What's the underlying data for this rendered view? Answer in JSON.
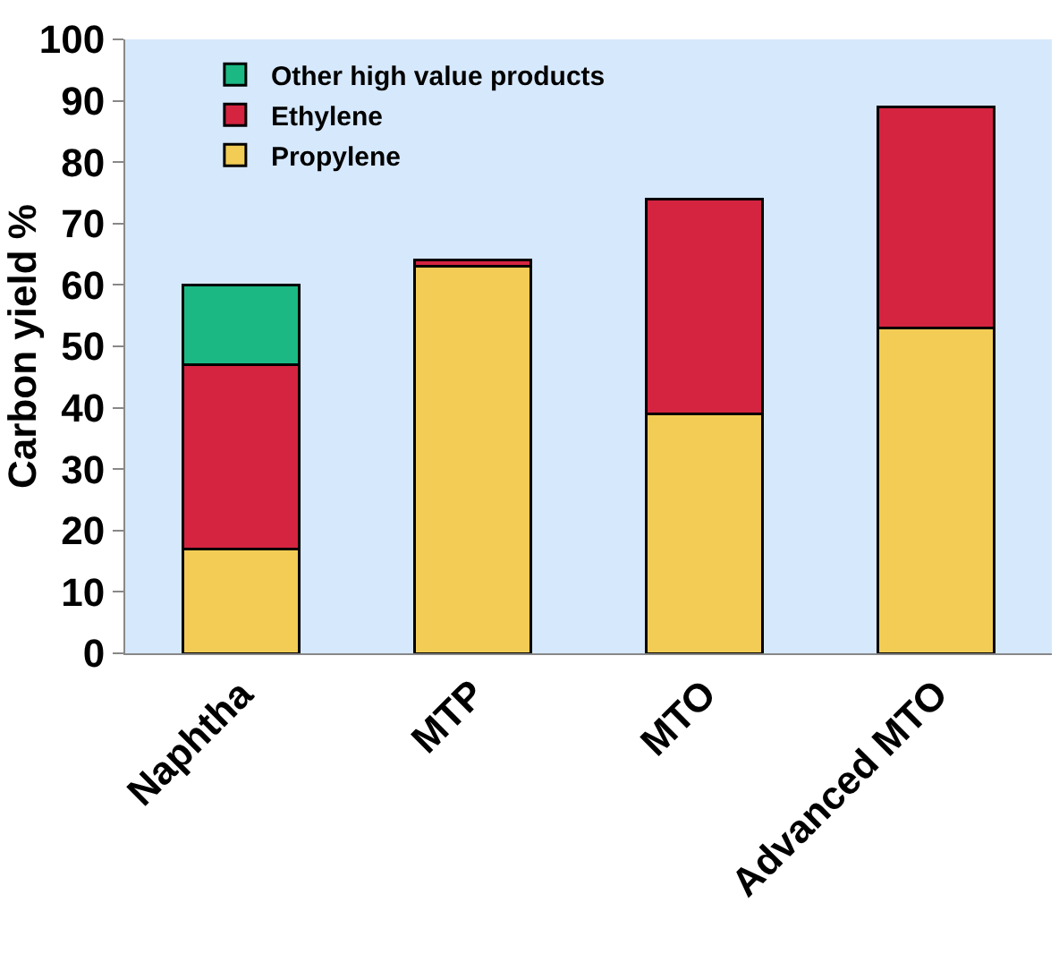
{
  "chart_data": {
    "type": "bar",
    "stacked": true,
    "ylabel": "Carbon yield %",
    "categories": [
      "Naphtha",
      "MTP",
      "MTO",
      "Advanced MTO"
    ],
    "series": [
      {
        "name": "Propylene",
        "color": "#f2cc55",
        "values": [
          17,
          63,
          39,
          53
        ]
      },
      {
        "name": "Ethylene",
        "color": "#d42440",
        "values": [
          30,
          1,
          35,
          36
        ]
      },
      {
        "name": "Other high value products",
        "color": "#1bb884",
        "values": [
          13,
          null,
          null,
          null
        ]
      }
    ],
    "ylim": [
      0,
      100
    ],
    "yticks": [
      0,
      10,
      20,
      30,
      40,
      50,
      60,
      70,
      80,
      90,
      100
    ],
    "grid": false,
    "legend": "top left"
  }
}
